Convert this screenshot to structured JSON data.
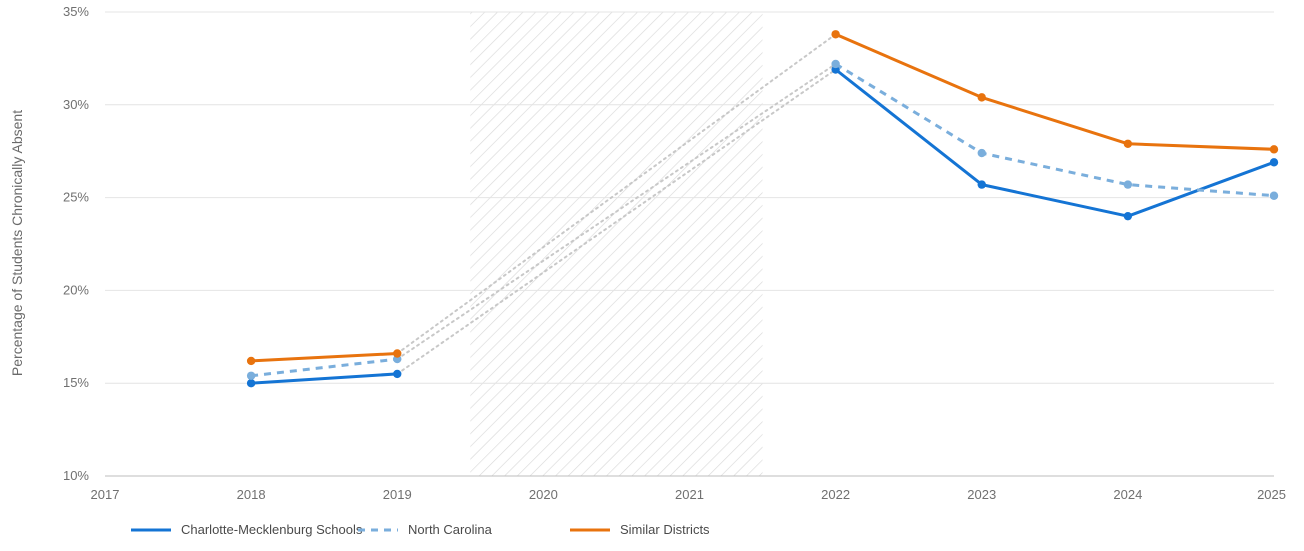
{
  "chart_data": {
    "type": "line",
    "ylabel": "Percentage of Students Chronically Absent",
    "x": [
      2017,
      2018,
      2019,
      2020,
      2021,
      2022,
      2023,
      2024,
      2025
    ],
    "x_tick_labels": [
      "2017",
      "2018",
      "2019",
      "2020",
      "2021",
      "2022",
      "2023",
      "2024",
      "2025"
    ],
    "ylim": [
      10,
      35
    ],
    "y_ticks": [
      10,
      15,
      20,
      25,
      30,
      35
    ],
    "y_tick_labels": [
      "10%",
      "15%",
      "20%",
      "25%",
      "30%",
      "35%"
    ],
    "grid": "horizontal",
    "legend_position": "bottom-left",
    "gap_region": {
      "from": 2019.5,
      "to": 2021.5,
      "pattern": "diagonal-hatch",
      "color": "#dcdcdc"
    },
    "series": [
      {
        "name": "Charlotte-Mecklenburg Schools",
        "color": "#1474d4",
        "style": "solid",
        "points": [
          [
            2018,
            15.0
          ],
          [
            2019,
            15.5
          ],
          [
            2022,
            31.9
          ],
          [
            2023,
            25.7
          ],
          [
            2024,
            24.0
          ],
          [
            2025,
            26.9
          ]
        ]
      },
      {
        "name": "North Carolina",
        "color": "#7aaedc",
        "style": "dashed",
        "points": [
          [
            2018,
            15.4
          ],
          [
            2019,
            16.3
          ],
          [
            2022,
            32.2
          ],
          [
            2023,
            27.4
          ],
          [
            2024,
            25.7
          ],
          [
            2025,
            25.1
          ]
        ]
      },
      {
        "name": "Similar Districts",
        "color": "#e8730e",
        "style": "solid",
        "points": [
          [
            2018,
            16.2
          ],
          [
            2019,
            16.6
          ],
          [
            2022,
            33.8
          ],
          [
            2023,
            30.4
          ],
          [
            2024,
            27.9
          ],
          [
            2025,
            27.6
          ]
        ]
      }
    ],
    "gap_connector_color": "#c8c8c8"
  }
}
